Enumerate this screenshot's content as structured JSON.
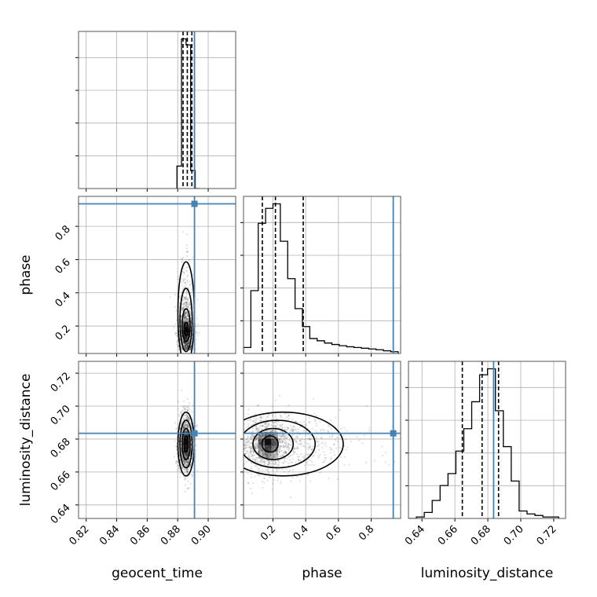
{
  "colors": {
    "truth": "#4682b4",
    "grid": "#b0b0b0",
    "samples": "#000000"
  },
  "chart_data": {
    "type": "corner",
    "parameters": [
      "geocent_time",
      "phase",
      "luminosity_distance"
    ],
    "truths": {
      "geocent_time": 0.891,
      "phase": 0.935,
      "luminosity_distance": 0.6835
    },
    "quantiles": {
      "geocent_time": [
        0.8835,
        0.8863,
        0.8893
      ],
      "phase": [
        0.135,
        0.215,
        0.385
      ],
      "luminosity_distance": [
        0.6645,
        0.6765,
        0.6865
      ]
    },
    "axes": {
      "geocent_time": {
        "xlim": [
          0.815,
          0.918
        ],
        "ticks": [
          0.82,
          0.84,
          0.86,
          0.88,
          0.9
        ],
        "tick_labels": [
          "0.82",
          "0.84",
          "0.86",
          "0.88",
          "0.90"
        ],
        "label": "geocent_time"
      },
      "phase": {
        "xlim": [
          0.02,
          0.98
        ],
        "ticks": [
          0.2,
          0.4,
          0.6,
          0.8
        ],
        "tick_labels": [
          "0.2",
          "0.4",
          "0.6",
          "0.8"
        ],
        "label": "phase"
      },
      "luminosity_distance": {
        "xlim": [
          0.6318,
          0.7272
        ],
        "ticks": [
          0.64,
          0.66,
          0.68,
          0.7,
          0.72
        ],
        "tick_labels": [
          "0.64",
          "0.66",
          "0.68",
          "0.70",
          "0.72"
        ],
        "label": "luminosity_distance"
      }
    },
    "histograms": {
      "geocent_time": {
        "edges": [
          0.8795,
          0.8825,
          0.8855,
          0.8885,
          0.8915,
          0.8945
        ],
        "counts": [
          0.15,
          1.0,
          0.96,
          0.12,
          0.0
        ]
      },
      "phase": {
        "edges": [
          0.02,
          0.065,
          0.11,
          0.155,
          0.2,
          0.245,
          0.29,
          0.335,
          0.38,
          0.425,
          0.47,
          0.515,
          0.56,
          0.605,
          0.65,
          0.695,
          0.74,
          0.785,
          0.83,
          0.875,
          0.92,
          0.965
        ],
        "counts": [
          0.04,
          0.42,
          0.87,
          0.97,
          1.0,
          0.75,
          0.5,
          0.3,
          0.18,
          0.1,
          0.085,
          0.07,
          0.06,
          0.052,
          0.045,
          0.04,
          0.035,
          0.03,
          0.025,
          0.018,
          0.012
        ]
      },
      "luminosity_distance": {
        "edges": [
          0.6318,
          0.6366,
          0.6414,
          0.6462,
          0.651,
          0.6558,
          0.6606,
          0.6654,
          0.6702,
          0.675,
          0.6798,
          0.6846,
          0.6894,
          0.6942,
          0.699,
          0.7038,
          0.7086,
          0.7134,
          0.7182,
          0.723
        ],
        "counts": [
          0.0,
          0.01,
          0.04,
          0.12,
          0.22,
          0.3,
          0.45,
          0.6,
          0.78,
          0.96,
          1.0,
          0.72,
          0.48,
          0.25,
          0.05,
          0.03,
          0.02,
          0.01,
          0.01
        ]
      }
    },
    "contour_levels": [
      "0.5 sigma",
      "1 sigma",
      "1.5 sigma",
      "2 sigma"
    ],
    "pairs": [
      {
        "x": "geocent_time",
        "y": "phase",
        "ylim": [
          0.035,
          0.98
        ],
        "yticks": [
          0.2,
          0.4,
          0.6,
          0.8
        ],
        "ytick_labels": [
          "0.2",
          "0.4",
          "0.6",
          "0.8"
        ],
        "ylabel": "phase",
        "center": [
          0.8855,
          0.17
        ],
        "spread": [
          0.0025,
          0.07
        ],
        "skew_y": 0.35
      },
      {
        "x": "geocent_time",
        "y": "luminosity_distance",
        "ylim": [
          0.6318,
          0.7272
        ],
        "yticks": [
          0.64,
          0.66,
          0.68,
          0.7,
          0.72
        ],
        "ytick_labels": [
          "0.64",
          "0.66",
          "0.68",
          "0.70",
          "0.72"
        ],
        "ylabel": "luminosity_distance",
        "center": [
          0.8855,
          0.677
        ],
        "spread": [
          0.0025,
          0.009
        ]
      },
      {
        "x": "phase",
        "y": "luminosity_distance",
        "ylim": [
          0.6318,
          0.7272
        ],
        "center": [
          0.17,
          0.677
        ],
        "spread": [
          0.09,
          0.009
        ],
        "skew_x": 0.45
      }
    ]
  }
}
